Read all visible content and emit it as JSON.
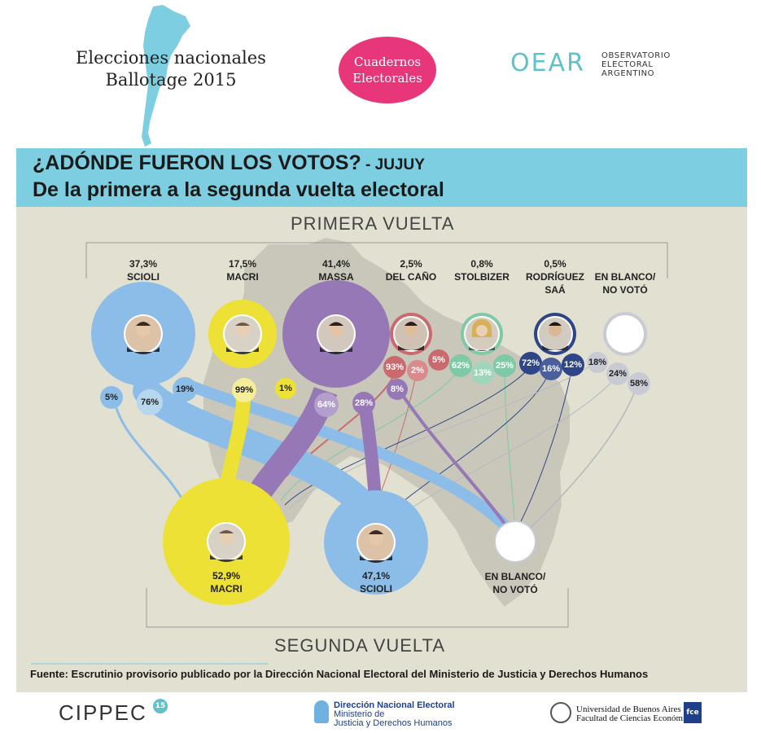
{
  "header": {
    "event_title_line1": "Elecciones nacionales",
    "event_title_line2": "Ballotage 2015",
    "badge_line1": "Cuadernos",
    "badge_line2": "Electorales",
    "oear_logo": "OEAR",
    "oear_line1": "OBSERVATORIO",
    "oear_line2": "ELECTORAL",
    "oear_line3": "ARGENTINO"
  },
  "banner": {
    "title": "¿ADÓNDE FUERON LOS VOTOS?",
    "separator": " - ",
    "province": "JUJUY",
    "subtitle": "De la primera a la segunda vuelta electoral"
  },
  "diagram": {
    "first_round_label": "PRIMERA VUELTA",
    "second_round_label": "SEGUNDA VUELTA",
    "first_round": [
      {
        "pct": "37,3%",
        "name": "SCIOLI",
        "color": "#8bbde8",
        "transfers": [
          "5%",
          "76%",
          "19%"
        ]
      },
      {
        "pct": "17,5%",
        "name": "MACRI",
        "color": "#ece134",
        "transfers": [
          "99%",
          "1%"
        ]
      },
      {
        "pct": "41,4%",
        "name": "MASSA",
        "color": "#9678b6",
        "transfers": [
          "64%",
          "28%",
          "8%"
        ]
      },
      {
        "pct": "2,5%",
        "name": "DEL CAÑO",
        "color": "#cb6a6e",
        "transfers": [
          "93%",
          "2%",
          "5%"
        ]
      },
      {
        "pct": "0,8%",
        "name": "STOLBIZER",
        "color": "#7ec9a6",
        "transfers": [
          "62%",
          "13%",
          "25%"
        ]
      },
      {
        "pct": "0,5%",
        "name_line1": "RODRÍGUEZ",
        "name_line2": "SAÁ",
        "color": "#2e4688",
        "transfers": [
          "72%",
          "16%",
          "12%"
        ]
      },
      {
        "name_line1": "EN BLANCO/",
        "name_line2": "NO VOTÓ",
        "color": "#c9cbd4",
        "transfers": [
          "18%",
          "24%",
          "58%"
        ]
      }
    ],
    "second_round": [
      {
        "pct": "52,9%",
        "name": "MACRI",
        "color": "#ece134"
      },
      {
        "pct": "47,1%",
        "name": "SCIOLI",
        "color": "#8bbde8"
      },
      {
        "name_line1": "EN BLANCO/",
        "name_line2": "NO VOTÓ",
        "color": "#ffffff"
      }
    ]
  },
  "footer": {
    "source": "Fuente: Escrutinio provisorio publicado por la Dirección Nacional Electoral del Ministerio de Justicia y Derechos Humanos",
    "cippec": "CIPPEC",
    "cippec_badge": "15",
    "dne_head": "Dirección Nacional Electoral",
    "dne_line1": "Ministerio de",
    "dne_line2": "Justicia y Derechos Humanos",
    "uba_line1": "Universidad de Buenos Aires",
    "uba_line2": "Facultad de Ciencias Económicas",
    "fce": "fce"
  }
}
